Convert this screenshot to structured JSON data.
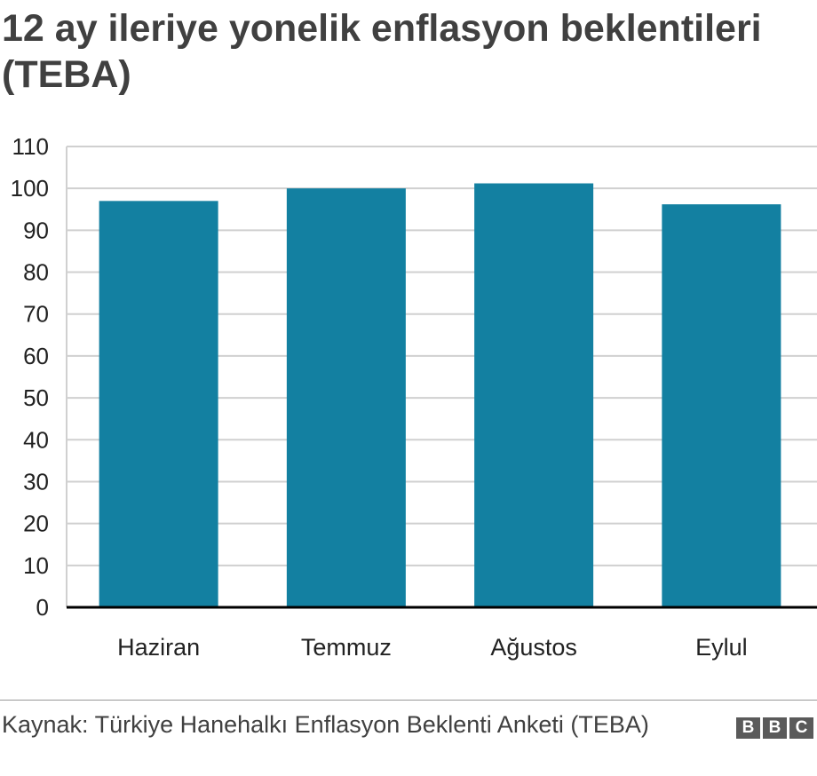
{
  "title": "12 ay ileriye yonelik enflasyon beklentileri (TEBA)",
  "source": "Kaynak: Türkiye Hanehalkı Enflasyon Beklenti Anketi (TEBA)",
  "logo": {
    "letters": [
      "B",
      "B",
      "C"
    ]
  },
  "colors": {
    "bar": "#1380a1",
    "grid": "#d0d0d0",
    "axis": "#000000"
  },
  "chart_data": {
    "type": "bar",
    "categories": [
      "Haziran",
      "Temmuz",
      "Ağustos",
      "Eylul"
    ],
    "values": [
      97,
      100,
      101.2,
      96.2
    ],
    "ylim": [
      0,
      110
    ],
    "yticks": [
      "0",
      "10",
      "20",
      "30",
      "40",
      "50",
      "60",
      "70",
      "80",
      "90",
      "100",
      "110"
    ],
    "grid": true,
    "legend": "none"
  }
}
